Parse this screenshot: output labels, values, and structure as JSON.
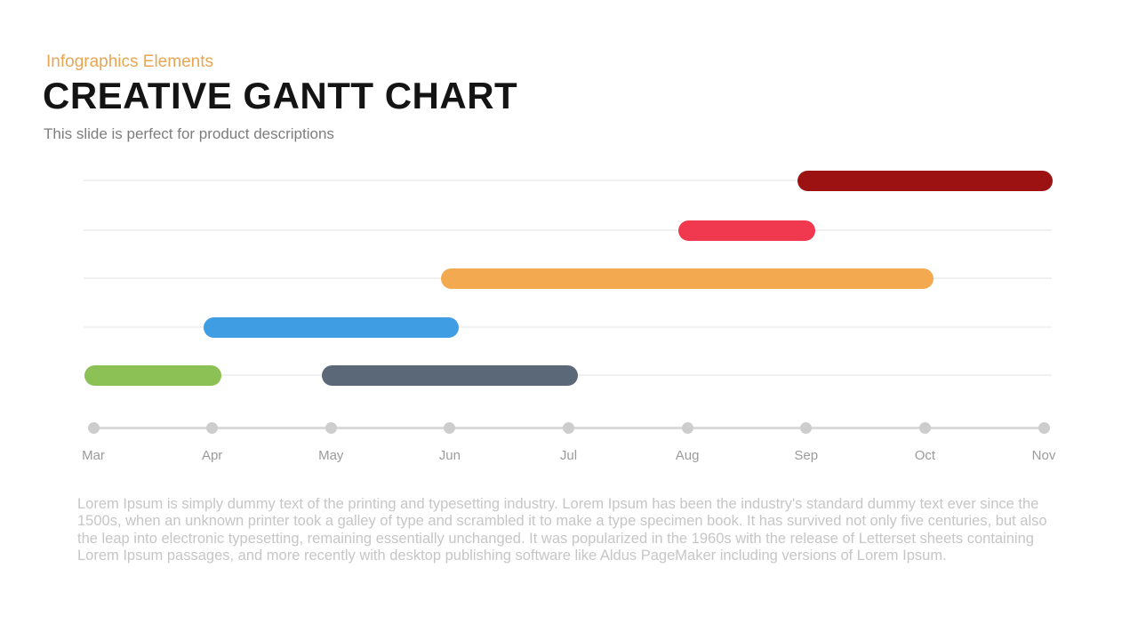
{
  "slide": {
    "eyebrow": "Infographics Elements",
    "title": "CREATIVE GANTT CHART",
    "subtitle": "This slide is perfect for product descriptions",
    "body_text": "Lorem Ipsum is simply dummy text of the printing and typesetting industry. Lorem Ipsum has been the industry's standard dummy text ever since the 1500s, when an unknown printer took a galley of type and scrambled it to make a type specimen book. It has survived not only five centuries, but also the leap into electronic typesetting, remaining essentially unchanged. It was popularized in the 1960s with the release of Letterset sheets containing Lorem Ipsum passages, and more recently with desktop publishing software like Aldus PageMaker including versions of Lorem Ipsum."
  },
  "colors": {
    "eyebrow_text": "#E8A653",
    "title_text": "#141414",
    "subtitle_text": "#7D7D7D",
    "body_text": "#C6C6C6",
    "gridline": "#F1F1F1",
    "axis_line": "#DADADA",
    "axis_dot": "#CDCDCD",
    "axis_label": "#9B9B9B"
  },
  "chart_data": {
    "type": "bar",
    "variant": "gantt",
    "orientation": "horizontal",
    "title": "",
    "xlabel": "",
    "ylabel": "",
    "grid": true,
    "legend": false,
    "x_axis": {
      "labels": [
        "Mar",
        "Apr",
        "May",
        "Jun",
        "Jul",
        "Aug",
        "Sep",
        "Oct",
        "Nov"
      ]
    },
    "row_count": 5,
    "bars": [
      {
        "row": 0,
        "start": "Sep",
        "end": "Nov",
        "color": "#9C1212",
        "name": "task-dark-red"
      },
      {
        "row": 1,
        "start": "Aug",
        "end": "Sep",
        "color": "#F0394E",
        "name": "task-red"
      },
      {
        "row": 2,
        "start": "Jun",
        "end": "Oct",
        "color": "#F3A94F",
        "name": "task-orange"
      },
      {
        "row": 3,
        "start": "Apr",
        "end": "Jun",
        "color": "#3F9DE3",
        "name": "task-blue"
      },
      {
        "row": 4,
        "start": "Mar",
        "end": "Apr",
        "color": "#8CC155",
        "name": "task-green"
      },
      {
        "row": 4,
        "start": "May",
        "end": "Jul",
        "color": "#5A6878",
        "name": "task-slate"
      }
    ]
  }
}
